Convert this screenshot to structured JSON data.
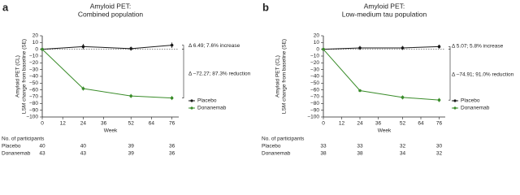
{
  "chart_data": [
    {
      "type": "line",
      "panel_label": "a",
      "title": [
        "Amyloid PET:",
        "Combined population"
      ],
      "y_label": [
        "Amyloid PET (CL)",
        "LSM change from baseline (SE)"
      ],
      "x_label": "Week",
      "x": [
        0,
        24,
        52,
        76
      ],
      "xlim": [
        0,
        80
      ],
      "xticks": [
        0,
        12,
        24,
        36,
        52,
        64,
        76
      ],
      "ylim": [
        -100,
        20
      ],
      "yticks": [
        20,
        10,
        0,
        {
          "value": -10,
          "label": "−10"
        },
        {
          "value": -20,
          "label": "−20"
        },
        {
          "value": -30,
          "label": "−30"
        },
        {
          "value": -40,
          "label": "−40"
        },
        {
          "value": -50,
          "label": "−50"
        },
        {
          "value": -60,
          "label": "−60"
        },
        {
          "value": -70,
          "label": "−70"
        },
        {
          "value": -80,
          "label": "−80"
        },
        {
          "value": -90,
          "label": "−90"
        },
        {
          "value": -100,
          "label": "−100"
        }
      ],
      "series": [
        {
          "name": "Placebo",
          "color": "#1a1a1a",
          "values": [
            0,
            4,
            1,
            6
          ],
          "errors": [
            0,
            4,
            3,
            4
          ]
        },
        {
          "name": "Donanemab",
          "color": "#3a8c2a",
          "values": [
            0,
            -58,
            -69,
            -72
          ],
          "errors": [
            0,
            3,
            3,
            3
          ]
        }
      ],
      "annotations": [
        "Δ 6.49; 7.6% increase",
        "Δ –72.27; 87.3% reduction"
      ],
      "participants": {
        "title": "No. of participants",
        "rows": [
          {
            "name": "Placebo",
            "counts": [
              40,
              40,
              39,
              36
            ]
          },
          {
            "name": "Donanemab",
            "counts": [
              43,
              43,
              39,
              36
            ]
          }
        ]
      }
    },
    {
      "type": "line",
      "panel_label": "b",
      "title": [
        "Amyloid PET:",
        "Low-medium tau population"
      ],
      "y_label": [
        "Amyloid PET (CL)",
        "LSM change from baseline (SE)"
      ],
      "x_label": "Week",
      "x": [
        0,
        24,
        52,
        76
      ],
      "xlim": [
        0,
        80
      ],
      "xticks": [
        0,
        12,
        24,
        36,
        52,
        64,
        76
      ],
      "ylim": [
        -100,
        20
      ],
      "yticks": [
        20,
        10,
        0,
        {
          "value": -10,
          "label": "−10"
        },
        {
          "value": -20,
          "label": "−20"
        },
        {
          "value": -30,
          "label": "−30"
        },
        {
          "value": -40,
          "label": "−40"
        },
        {
          "value": -50,
          "label": "−50"
        },
        {
          "value": -60,
          "label": "−60"
        },
        {
          "value": -70,
          "label": "−70"
        },
        {
          "value": -80,
          "label": "−80"
        },
        {
          "value": -90,
          "label": "−90"
        },
        {
          "value": -100,
          "label": "−100"
        }
      ],
      "series": [
        {
          "name": "Placebo",
          "color": "#1a1a1a",
          "values": [
            0,
            2,
            2,
            4
          ],
          "errors": [
            0,
            3,
            3,
            3
          ]
        },
        {
          "name": "Donanemab",
          "color": "#3a8c2a",
          "values": [
            0,
            -61,
            -71,
            -75
          ],
          "errors": [
            0,
            2,
            3,
            3
          ]
        }
      ],
      "annotations": [
        "Δ 5.07; 5.8% increase",
        "Δ –74.91; 91.0% reduction"
      ],
      "participants": {
        "title": "No. of participants",
        "rows": [
          {
            "name": "Placebo",
            "counts": [
              33,
              33,
              32,
              30
            ]
          },
          {
            "name": "Donanemab",
            "counts": [
              38,
              38,
              34,
              32
            ]
          }
        ]
      }
    }
  ]
}
